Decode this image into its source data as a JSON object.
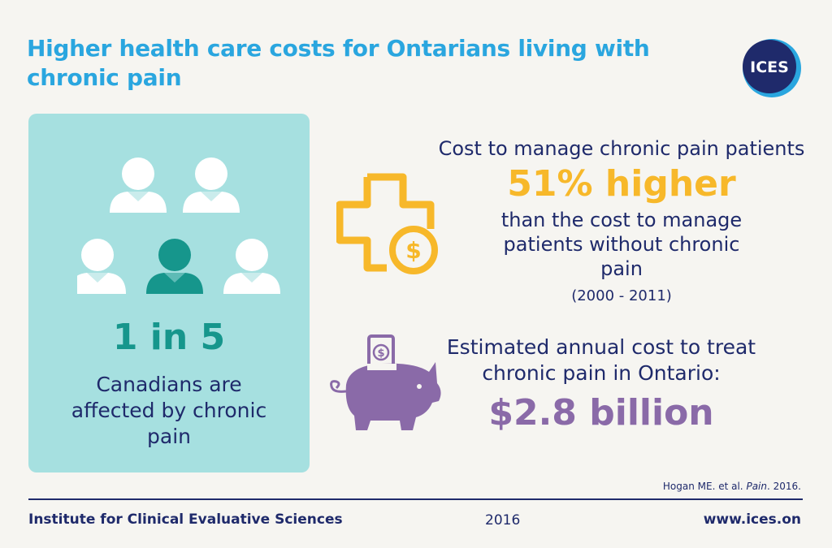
{
  "title": "Higher health care costs for Ontarians living with chronic pain",
  "logo": {
    "text": "ICES",
    "color": "#1f2a6b"
  },
  "left_panel": {
    "stat": "1 in 5",
    "description": "Canadians are affected by chronic pain",
    "people_icons": [
      "person-icon",
      "person-icon",
      "person-icon",
      "person-highlighted-icon",
      "person-icon"
    ],
    "highlight_fraction": "1/5"
  },
  "cost": {
    "intro": "Cost to manage chronic pain patients",
    "highlight": "51% higher",
    "rest": "than the cost to manage patients without chronic pain",
    "period": "(2000 - 2011)",
    "icon": "medical-cross-dollar-icon"
  },
  "annual": {
    "text": "Estimated annual cost to treat chronic pain in Ontario:",
    "amount": "$2.8 billion",
    "icon": "piggy-bank-icon"
  },
  "citation": {
    "authors": "Hogan ME. et al.",
    "journal": "Pain",
    "year": "2016."
  },
  "footer": {
    "organization": "Institute for Clinical Evaluative Sciences",
    "year": "2016",
    "website": "www.ices.on"
  },
  "colors": {
    "title": "#2aa6df",
    "navy": "#1f2a6b",
    "teal_panel": "#a6e0e0",
    "teal_dark": "#16968c",
    "yellow": "#f7b82a",
    "purple": "#8a6aa8"
  }
}
